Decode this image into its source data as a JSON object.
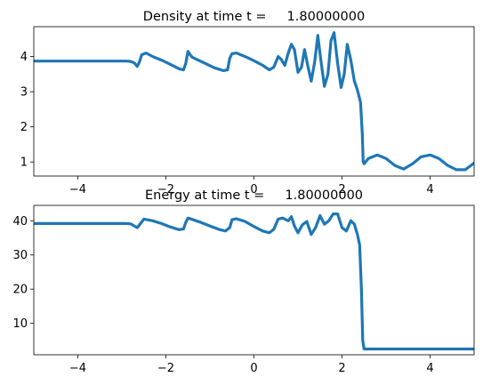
{
  "chart_data": [
    {
      "type": "line",
      "title": "Density at time t =     1.80000000",
      "xlabel": "",
      "ylabel": "",
      "xlim": [
        -5,
        5
      ],
      "ylim": [
        0.6,
        4.85
      ],
      "xticks": [
        -4,
        -2,
        0,
        2,
        4
      ],
      "yticks": [
        1,
        2,
        3,
        4
      ],
      "xticklabels": [
        "−4",
        "−2",
        "0",
        "2",
        "4"
      ],
      "yticklabels": [
        "1",
        "2",
        "3",
        "4"
      ],
      "color": "#1f77b4",
      "x": [
        -5.0,
        -2.9,
        -2.8,
        -2.72,
        -2.65,
        -2.6,
        -2.55,
        -2.45,
        -2.3,
        -2.1,
        -1.9,
        -1.7,
        -1.6,
        -1.55,
        -1.5,
        -1.45,
        -1.4,
        -1.3,
        -1.1,
        -0.9,
        -0.7,
        -0.6,
        -0.55,
        -0.5,
        -0.4,
        -0.2,
        0.0,
        0.2,
        0.35,
        0.45,
        0.5,
        0.55,
        0.62,
        0.7,
        0.78,
        0.85,
        0.92,
        1.0,
        1.08,
        1.15,
        1.22,
        1.3,
        1.38,
        1.45,
        1.52,
        1.6,
        1.68,
        1.75,
        1.82,
        1.9,
        1.98,
        2.05,
        2.12,
        2.2,
        2.28,
        2.35,
        2.42,
        2.46,
        2.48,
        2.5,
        2.6,
        2.8,
        3.0,
        3.2,
        3.4,
        3.6,
        3.8,
        4.0,
        4.2,
        4.4,
        4.6,
        4.8,
        5.0
      ],
      "y": [
        3.87,
        3.87,
        3.86,
        3.82,
        3.72,
        3.85,
        4.05,
        4.1,
        4.0,
        3.9,
        3.78,
        3.65,
        3.62,
        3.8,
        4.15,
        4.05,
        3.98,
        3.92,
        3.8,
        3.68,
        3.6,
        3.62,
        3.95,
        4.08,
        4.1,
        4.0,
        3.88,
        3.75,
        3.62,
        3.7,
        3.85,
        4.0,
        3.92,
        3.75,
        4.1,
        4.35,
        4.2,
        3.55,
        3.7,
        4.2,
        3.75,
        3.3,
        3.85,
        4.6,
        3.9,
        3.15,
        3.5,
        4.45,
        4.68,
        3.8,
        3.12,
        3.5,
        4.35,
        3.9,
        3.3,
        3.05,
        2.7,
        1.8,
        1.0,
        0.95,
        1.1,
        1.2,
        1.1,
        0.9,
        0.8,
        0.95,
        1.15,
        1.2,
        1.1,
        0.9,
        0.78,
        0.78,
        0.97
      ]
    },
    {
      "type": "line",
      "title": "Energy at time t =     1.80000000",
      "xlabel": "",
      "ylabel": "",
      "xlim": [
        -5,
        5
      ],
      "ylim": [
        0.8,
        44.5
      ],
      "xticks": [
        -4,
        -2,
        0,
        2,
        4
      ],
      "yticks": [
        10,
        20,
        30,
        40
      ],
      "xticklabels": [
        "−4",
        "−2",
        "0",
        "2",
        "4"
      ],
      "yticklabels": [
        "10",
        "20",
        "30",
        "40"
      ],
      "color": "#1f77b4",
      "x": [
        -5.0,
        -2.9,
        -2.8,
        -2.72,
        -2.65,
        -2.6,
        -2.5,
        -2.3,
        -2.1,
        -1.9,
        -1.7,
        -1.6,
        -1.55,
        -1.5,
        -1.4,
        -1.2,
        -1.0,
        -0.8,
        -0.65,
        -0.55,
        -0.5,
        -0.4,
        -0.2,
        0.0,
        0.2,
        0.35,
        0.45,
        0.55,
        0.65,
        0.78,
        0.85,
        0.92,
        1.0,
        1.1,
        1.2,
        1.3,
        1.4,
        1.5,
        1.6,
        1.7,
        1.8,
        1.9,
        2.0,
        2.1,
        2.2,
        2.28,
        2.35,
        2.4,
        2.44,
        2.47,
        2.5,
        5.0
      ],
      "y": [
        39.2,
        39.2,
        39.1,
        38.5,
        38.0,
        38.8,
        40.5,
        40.0,
        39.2,
        38.2,
        37.4,
        37.6,
        39.5,
        40.8,
        40.4,
        39.5,
        38.5,
        37.5,
        37.0,
        38.0,
        40.3,
        40.6,
        39.8,
        38.3,
        37.0,
        36.5,
        37.5,
        40.5,
        40.8,
        40.0,
        41.2,
        38.5,
        36.5,
        38.8,
        39.8,
        36.0,
        38.0,
        41.5,
        39.0,
        40.0,
        42.0,
        42.0,
        38.0,
        37.0,
        40.0,
        39.0,
        36.0,
        33.0,
        20.0,
        5.0,
        2.5,
        2.5
      ]
    }
  ]
}
